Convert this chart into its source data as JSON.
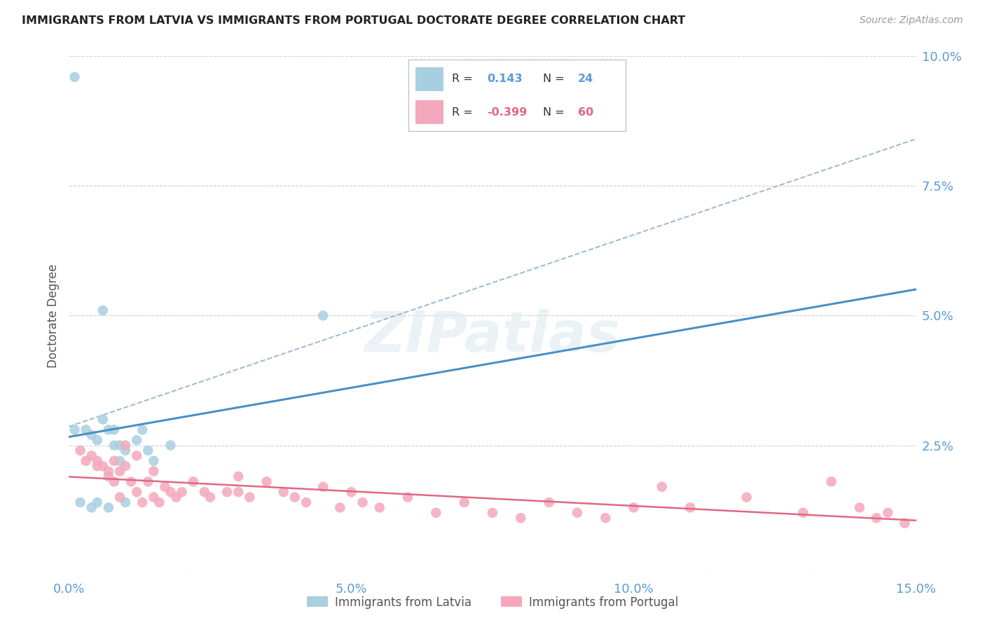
{
  "title": "IMMIGRANTS FROM LATVIA VS IMMIGRANTS FROM PORTUGAL DOCTORATE DEGREE CORRELATION CHART",
  "source": "Source: ZipAtlas.com",
  "ylabel": "Doctorate Degree",
  "xlim": [
    0.0,
    0.15
  ],
  "ylim": [
    0.0,
    0.1
  ],
  "yticks_right": [
    0.0,
    0.025,
    0.05,
    0.075,
    0.1
  ],
  "ytick_labels_right": [
    "",
    "2.5%",
    "5.0%",
    "7.5%",
    "10.0%"
  ],
  "xtick_positions": [
    0.0,
    0.05,
    0.1,
    0.15
  ],
  "xtick_labels": [
    "0.0%",
    "5.0%",
    "10.0%",
    "15.0%"
  ],
  "legend_r_latvia": "0.143",
  "legend_n_latvia": "24",
  "legend_r_portugal": "-0.399",
  "legend_n_portugal": "60",
  "latvia_color": "#a8cfe0",
  "portugal_color": "#f4a8bc",
  "latvia_line_color": "#4a90c4",
  "portugal_line_color": "#e06880",
  "dashed_line_color": "#9ab8d0",
  "background_color": "#ffffff",
  "grid_color": "#d0d0d0",
  "watermark": "ZIPatlas",
  "latvia_x": [
    0.001,
    0.001,
    0.002,
    0.003,
    0.004,
    0.004,
    0.005,
    0.005,
    0.006,
    0.006,
    0.007,
    0.007,
    0.008,
    0.008,
    0.009,
    0.009,
    0.01,
    0.01,
    0.012,
    0.013,
    0.014,
    0.015,
    0.018,
    0.045
  ],
  "latvia_y": [
    0.096,
    0.028,
    0.014,
    0.028,
    0.027,
    0.013,
    0.026,
    0.014,
    0.03,
    0.051,
    0.028,
    0.013,
    0.025,
    0.028,
    0.025,
    0.022,
    0.024,
    0.014,
    0.026,
    0.028,
    0.024,
    0.022,
    0.025,
    0.05
  ],
  "portugal_x": [
    0.002,
    0.003,
    0.004,
    0.005,
    0.005,
    0.006,
    0.007,
    0.007,
    0.008,
    0.008,
    0.009,
    0.009,
    0.01,
    0.01,
    0.011,
    0.012,
    0.012,
    0.013,
    0.014,
    0.015,
    0.015,
    0.016,
    0.017,
    0.018,
    0.019,
    0.02,
    0.022,
    0.024,
    0.025,
    0.028,
    0.03,
    0.03,
    0.032,
    0.035,
    0.038,
    0.04,
    0.042,
    0.045,
    0.048,
    0.05,
    0.052,
    0.055,
    0.06,
    0.065,
    0.07,
    0.075,
    0.08,
    0.085,
    0.09,
    0.095,
    0.1,
    0.105,
    0.11,
    0.12,
    0.13,
    0.135,
    0.14,
    0.143,
    0.145,
    0.148
  ],
  "portugal_y": [
    0.024,
    0.022,
    0.023,
    0.022,
    0.021,
    0.021,
    0.02,
    0.019,
    0.018,
    0.022,
    0.02,
    0.015,
    0.025,
    0.021,
    0.018,
    0.023,
    0.016,
    0.014,
    0.018,
    0.02,
    0.015,
    0.014,
    0.017,
    0.016,
    0.015,
    0.016,
    0.018,
    0.016,
    0.015,
    0.016,
    0.019,
    0.016,
    0.015,
    0.018,
    0.016,
    0.015,
    0.014,
    0.017,
    0.013,
    0.016,
    0.014,
    0.013,
    0.015,
    0.012,
    0.014,
    0.012,
    0.011,
    0.014,
    0.012,
    0.011,
    0.013,
    0.017,
    0.013,
    0.015,
    0.012,
    0.018,
    0.013,
    0.011,
    0.012,
    0.01
  ]
}
